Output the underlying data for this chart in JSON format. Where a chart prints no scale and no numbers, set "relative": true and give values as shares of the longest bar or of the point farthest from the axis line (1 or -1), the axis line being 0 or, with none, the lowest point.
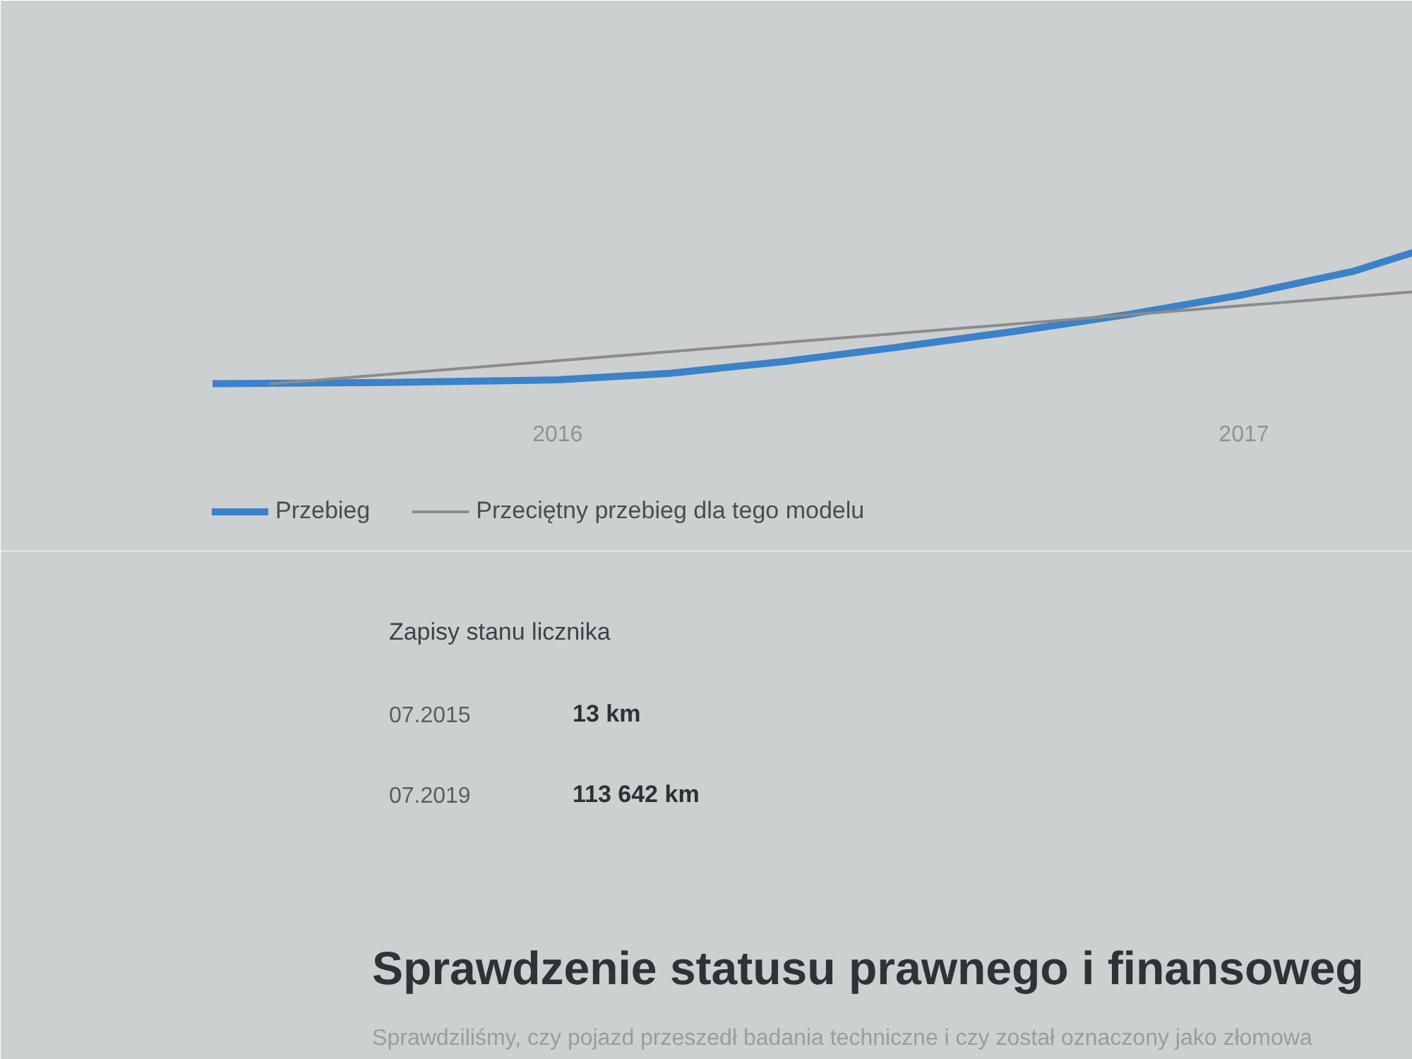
{
  "chart_data": {
    "type": "line",
    "relative": true,
    "xlim": [
      "2015-07",
      "2017-04"
    ],
    "xticks": [
      "2016",
      "2017"
    ],
    "legend": "bottom",
    "line_style": "solid",
    "series": [
      {
        "name": "Przebieg",
        "color": "#3b82c8",
        "x": [
          "2015-07",
          "2015-10",
          "2016-01",
          "2016-03",
          "2016-05",
          "2016-07",
          "2016-09",
          "2016-11",
          "2017-01",
          "2017-03",
          "2017-04"
        ],
        "values": [
          0,
          0.01,
          0.03,
          0.08,
          0.17,
          0.28,
          0.4,
          0.53,
          0.68,
          0.86,
          1.0
        ]
      },
      {
        "name": "Przeciętny przebieg dla tego modelu",
        "color": "#8c8c8c",
        "x": [
          "2015-08",
          "2017-04"
        ],
        "values": [
          0,
          0.7
        ]
      }
    ],
    "annotations": [
      "Zapisy stanu licznika",
      "07.2015",
      "13 km",
      "07.2019",
      "113 642 km",
      "Sprawdzenie statusu prawnego i finansoweg",
      "Sprawdziliśmy, czy pojazd przeszedł badania techniczne i czy został oznaczony jako złomowa"
    ]
  }
}
